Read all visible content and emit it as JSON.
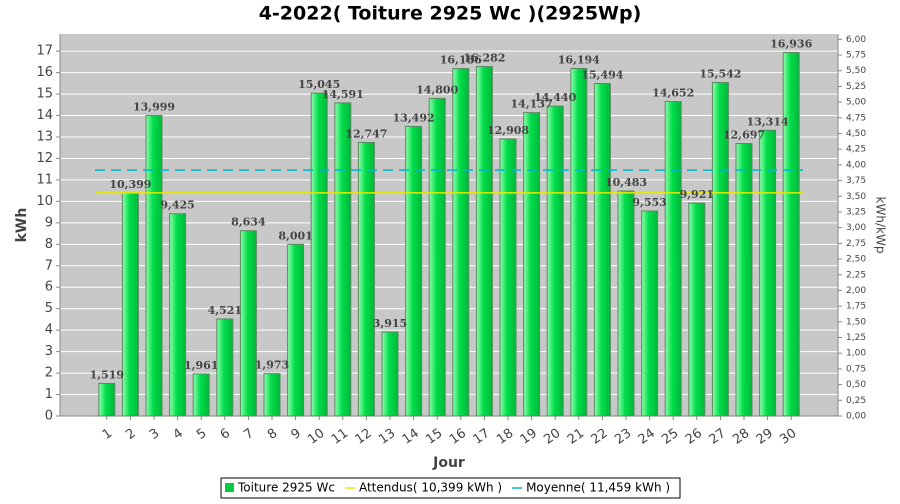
{
  "chart_data": {
    "type": "bar",
    "title": "4-2022( Toiture 2925 Wc )(2925Wp)",
    "x_label": "Jour",
    "y_label": "kWh",
    "y2_label": "kWh/kWp",
    "categories": [
      "1",
      "2",
      "3",
      "4",
      "5",
      "6",
      "7",
      "8",
      "9",
      "10",
      "11",
      "12",
      "13",
      "14",
      "15",
      "16",
      "17",
      "18",
      "19",
      "20",
      "21",
      "22",
      "23",
      "24",
      "25",
      "26",
      "27",
      "28",
      "29",
      "30"
    ],
    "series": [
      {
        "name": "Toiture 2925 Wc",
        "color": "#00cc44",
        "values": [
          1.519,
          10.399,
          13.999,
          9.425,
          1.961,
          4.521,
          8.634,
          1.973,
          8.001,
          15.045,
          14.591,
          12.747,
          3.915,
          13.492,
          14.8,
          16.186,
          16.282,
          12.908,
          14.137,
          14.44,
          16.194,
          15.494,
          10.483,
          9.553,
          14.652,
          9.921,
          15.542,
          12.697,
          13.314,
          16.936
        ],
        "value_labels": [
          "1,519",
          "10,399",
          "13,999",
          "9,425",
          "1,961",
          "4,521",
          "8,634",
          "1,973",
          "8,001",
          "15,045",
          "14,591",
          "12,747",
          "3,915",
          "13,492",
          "14,800",
          "16,186",
          "16,282",
          "12,908",
          "14,137",
          "14,440",
          "16,194",
          "15,494",
          "10,483",
          "9,553",
          "14,652",
          "9,921",
          "15,542",
          "12,697",
          "13,314",
          "16,936"
        ]
      }
    ],
    "reference_lines": [
      {
        "name": "Attendus( 10,399 kWh )",
        "color": "#e8e800",
        "value": 10.399,
        "dash": false
      },
      {
        "name": "Moyenne( 11,459 kWh )",
        "color": "#00b8c8",
        "value": 11.459,
        "dash": true
      }
    ],
    "ylim": [
      0,
      17.8
    ],
    "yticks": [
      0,
      1,
      2,
      3,
      4,
      5,
      6,
      7,
      8,
      9,
      10,
      11,
      12,
      13,
      14,
      15,
      16,
      17
    ],
    "y2lim": [
      0,
      6.085
    ],
    "y2ticks": [
      {
        "value": 0,
        "label": "0,00"
      },
      {
        "value": 0.25,
        "label": "0,25"
      },
      {
        "value": 0.5,
        "label": "0,50"
      },
      {
        "value": 0.75,
        "label": "0,75"
      },
      {
        "value": 1,
        "label": "1,00"
      },
      {
        "value": 1.25,
        "label": "1,25"
      },
      {
        "value": 1.5,
        "label": "1,50"
      },
      {
        "value": 1.75,
        "label": "1,75"
      },
      {
        "value": 2,
        "label": "2,00"
      },
      {
        "value": 2.25,
        "label": "2,25"
      },
      {
        "value": 2.5,
        "label": "2,50"
      },
      {
        "value": 2.75,
        "label": "2,75"
      },
      {
        "value": 3,
        "label": "3,00"
      },
      {
        "value": 3.25,
        "label": "3,25"
      },
      {
        "value": 3.5,
        "label": "3,50"
      },
      {
        "value": 3.75,
        "label": "3,75"
      },
      {
        "value": 4,
        "label": "4,00"
      },
      {
        "value": 4.25,
        "label": "4,25"
      },
      {
        "value": 4.5,
        "label": "4,50"
      },
      {
        "value": 4.75,
        "label": "4,75"
      },
      {
        "value": 5,
        "label": "5,00"
      },
      {
        "value": 5.25,
        "label": "5,25"
      },
      {
        "value": 5.5,
        "label": "5,50"
      },
      {
        "value": 5.75,
        "label": "5,75"
      },
      {
        "value": 6,
        "label": "6,00"
      }
    ],
    "grid": true
  }
}
